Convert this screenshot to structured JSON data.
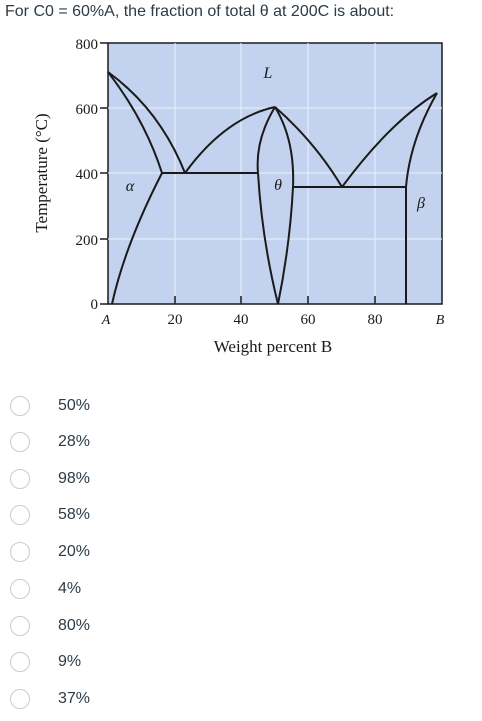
{
  "question": {
    "text": "For C0 = 60%A, the fraction of total θ at 200C is about:"
  },
  "diagram": {
    "y_axis_label": "Temperature (°C)",
    "x_axis_label": "Weight percent B",
    "y_ticks": [
      "800",
      "600",
      "400",
      "200",
      "0"
    ],
    "x_ticks": [
      "20",
      "40",
      "60",
      "80"
    ],
    "left_component": "A",
    "right_component": "B",
    "phase_labels": {
      "liquid": "L",
      "alpha": "α",
      "theta": "θ",
      "beta": "β"
    },
    "fill_color": "#c3d2ee",
    "line_color": "#1a1a1a"
  },
  "answers": [
    {
      "label": "50%"
    },
    {
      "label": "28%"
    },
    {
      "label": "98%"
    },
    {
      "label": "58%"
    },
    {
      "label": "20%"
    },
    {
      "label": "4%"
    },
    {
      "label": "80%"
    },
    {
      "label": "9%"
    },
    {
      "label": "37%"
    }
  ]
}
